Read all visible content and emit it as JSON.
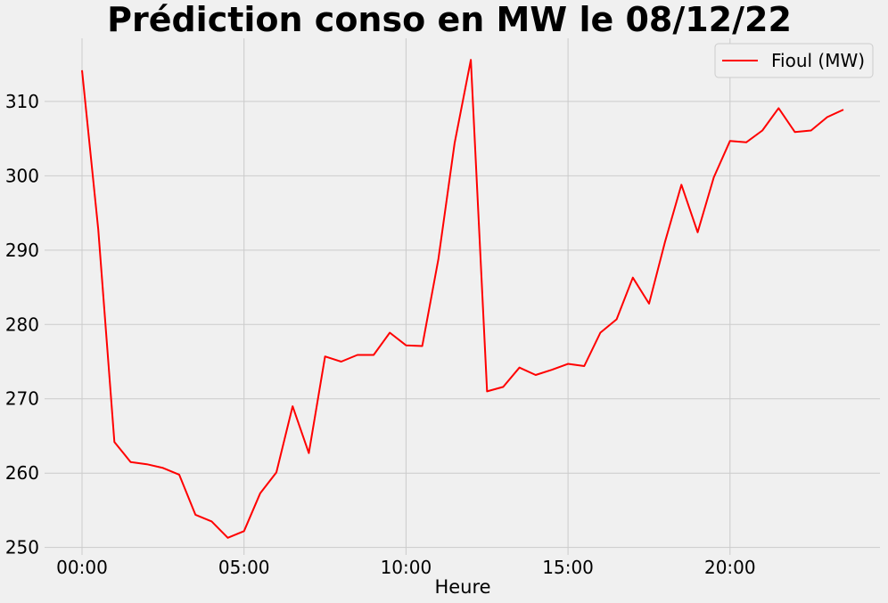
{
  "chart_data": {
    "type": "line",
    "title": "Prédiction conso en MW le 08/12/22",
    "xlabel": "Heure",
    "ylabel": "",
    "x": [
      "00:00",
      "00:30",
      "01:00",
      "01:30",
      "02:00",
      "02:30",
      "03:00",
      "03:30",
      "04:00",
      "04:30",
      "05:00",
      "05:30",
      "06:00",
      "06:30",
      "07:00",
      "07:30",
      "08:00",
      "08:30",
      "09:00",
      "09:30",
      "10:00",
      "10:30",
      "11:00",
      "11:30",
      "12:00",
      "12:30",
      "13:00",
      "13:30",
      "14:00",
      "14:30",
      "15:00",
      "15:30",
      "16:00",
      "16:30",
      "17:00",
      "17:30",
      "18:00",
      "18:30",
      "19:00",
      "19:30",
      "20:00",
      "20:30",
      "21:00",
      "21:30",
      "22:00",
      "22:30",
      "23:00",
      "23:30"
    ],
    "x_ticks": [
      "00:00",
      "05:00",
      "10:00",
      "15:00",
      "20:00"
    ],
    "y_ticks": [
      250,
      260,
      270,
      280,
      290,
      300,
      310
    ],
    "ylim": [
      249,
      318.5
    ],
    "series": [
      {
        "name": "Fioul (MW)",
        "color": "#ff0000",
        "values": [
          314.2,
          292.8,
          264.2,
          261.5,
          261.2,
          260.7,
          259.8,
          254.4,
          253.5,
          251.3,
          252.2,
          257.3,
          260.1,
          269.0,
          262.7,
          275.7,
          275.0,
          275.9,
          275.9,
          278.9,
          277.2,
          277.1,
          288.8,
          304.4,
          315.6,
          271.0,
          271.6,
          274.2,
          273.2,
          273.9,
          274.7,
          274.4,
          278.9,
          280.7,
          286.3,
          282.8,
          291.2,
          298.8,
          292.4,
          299.8,
          304.7,
          304.5,
          306.1,
          309.1,
          305.9,
          306.1,
          307.9,
          308.9
        ]
      }
    ],
    "legend_position": "top-right",
    "grid": true
  }
}
